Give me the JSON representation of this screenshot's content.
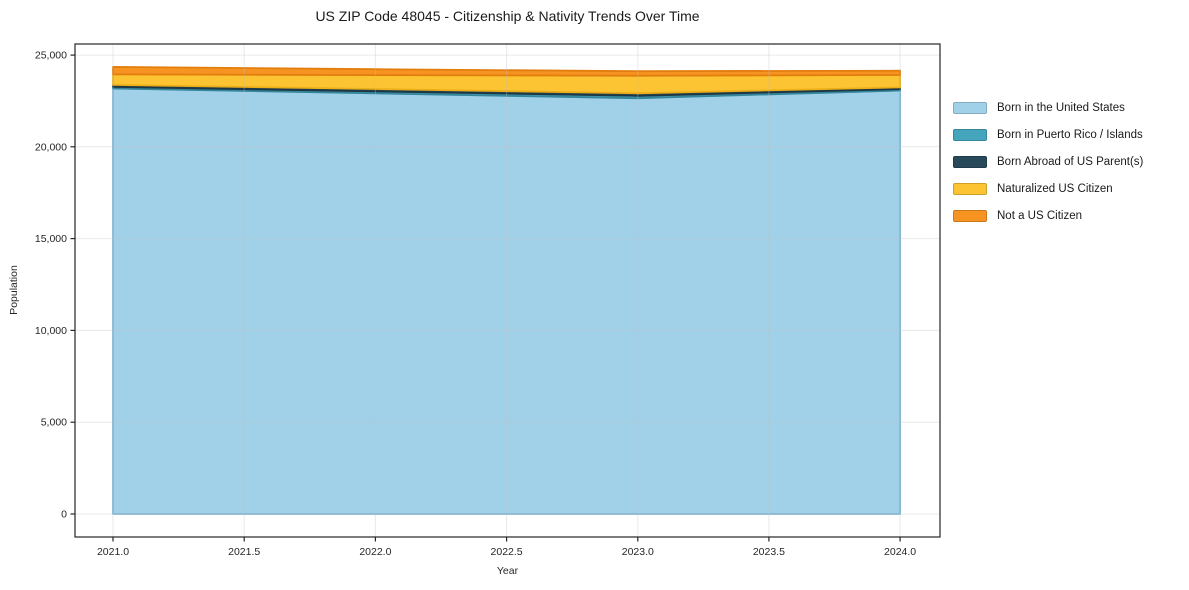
{
  "title": "US ZIP Code 48045 - Citizenship & Nativity Trends Over Time",
  "chart_data": {
    "type": "area",
    "stacked": true,
    "title": "US ZIP Code 48045 - Citizenship & Nativity Trends Over Time",
    "xlabel": "Year",
    "ylabel": "Population",
    "grid": true,
    "legend_position": "right",
    "xlim": [
      2020.855,
      2024.152
    ],
    "ylim": [
      -1252,
      25602
    ],
    "x": [
      2021,
      2022,
      2023,
      2024
    ],
    "series": [
      {
        "name": "Born in the United States",
        "color": "#a1d1e8",
        "edge": "#7db6d6",
        "values": [
          23177,
          22909,
          22650,
          23069
        ]
      },
      {
        "name": "Born in Puerto Rico / Islands",
        "color": "#44a5bd",
        "edge": "#35869b",
        "values": [
          90,
          110,
          130,
          75
        ]
      },
      {
        "name": "Born Abroad of US Parent(s)",
        "color": "#28495a",
        "edge": "#1d3744",
        "values": [
          105,
          130,
          135,
          95
        ]
      },
      {
        "name": "Naturalized US Citizen",
        "color": "#fcc332",
        "edge": "#edaf17",
        "values": [
          580,
          760,
          960,
          675
        ]
      },
      {
        "name": "Not a US Citizen",
        "color": "#f79421",
        "edge": "#e27e0e",
        "values": [
          400,
          320,
          245,
          235
        ]
      }
    ],
    "xticks": [
      {
        "value": 2021.0,
        "label": "2021.0"
      },
      {
        "value": 2021.5,
        "label": "2021.5"
      },
      {
        "value": 2022.0,
        "label": "2022.0"
      },
      {
        "value": 2022.5,
        "label": "2022.5"
      },
      {
        "value": 2023.0,
        "label": "2023.0"
      },
      {
        "value": 2023.5,
        "label": "2023.5"
      },
      {
        "value": 2024.0,
        "label": "2024.0"
      }
    ],
    "yticks": [
      {
        "value": 0,
        "label": "0"
      },
      {
        "value": 5000,
        "label": "5,000"
      },
      {
        "value": 10000,
        "label": "10,000"
      },
      {
        "value": 15000,
        "label": "15,000"
      },
      {
        "value": 20000,
        "label": "20,000"
      },
      {
        "value": 25000,
        "label": "25,000"
      }
    ],
    "colors": {
      "background": "#ffffff",
      "axis_frame": "#262626",
      "gridline": "#bfbfbf",
      "tick_text": "#262626"
    }
  }
}
